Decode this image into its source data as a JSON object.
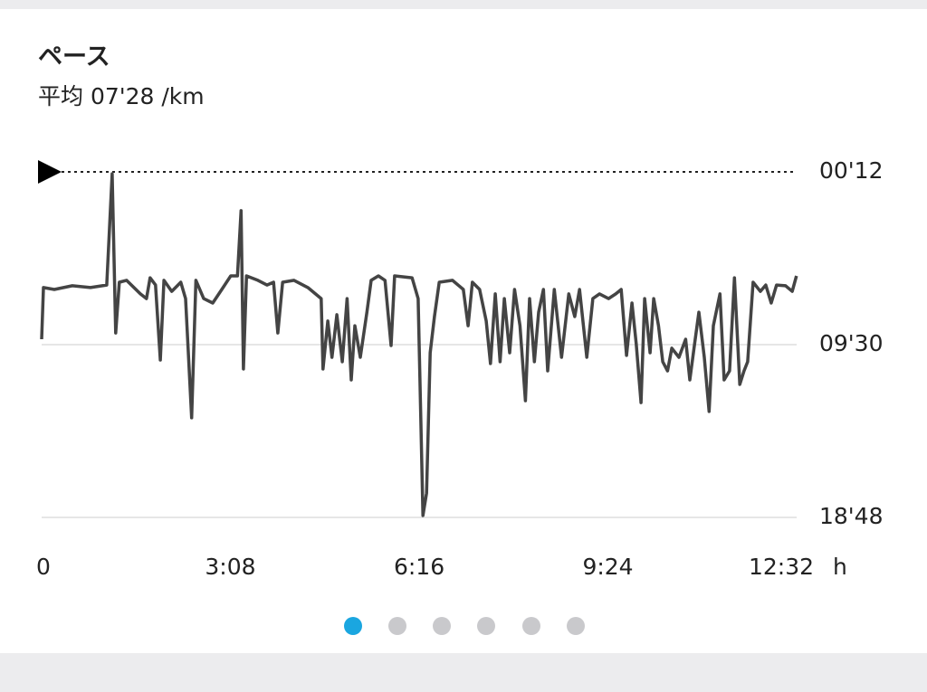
{
  "chart_data": {
    "type": "line",
    "title": "ペース",
    "subtitle": "平均 07'28 /km",
    "x_label": "h",
    "color": "#444444",
    "x": [
      0,
      0.03,
      0.21,
      0.51,
      0.81,
      1.08,
      1.17,
      1.23,
      1.29,
      1.41,
      1.64,
      1.74,
      1.8,
      1.89,
      1.97,
      2.03,
      2.16,
      2.31,
      2.39,
      2.49,
      2.56,
      2.69,
      2.84,
      2.99,
      3.14,
      3.25,
      3.31,
      3.35,
      3.4,
      3.59,
      3.74,
      3.85,
      3.92,
      4.0,
      4.19,
      4.42,
      4.64,
      4.67,
      4.75,
      4.82,
      4.9,
      4.99,
      5.07,
      5.14,
      5.2,
      5.29,
      5.4,
      5.47,
      5.59,
      5.7,
      5.8,
      5.86,
      6.15,
      6.25,
      6.33,
      6.39,
      6.45,
      6.52,
      6.6,
      6.82,
      7.0,
      7.08,
      7.15,
      7.27,
      7.38,
      7.45,
      7.53,
      7.61,
      7.68,
      7.77,
      7.85,
      7.94,
      8.03,
      8.1,
      8.18,
      8.25,
      8.33,
      8.4,
      8.51,
      8.63,
      8.75,
      8.85,
      8.93,
      9.05,
      9.15,
      9.26,
      9.41,
      9.53,
      9.62,
      9.71,
      9.8,
      9.87,
      9.95,
      10.01,
      10.1,
      10.16,
      10.24,
      10.31,
      10.39,
      10.46,
      10.58,
      10.69,
      10.76,
      10.84,
      10.91,
      11.0,
      11.08,
      11.15,
      11.26,
      11.33,
      11.42,
      11.5,
      11.59,
      11.66,
      11.72,
      11.81,
      11.93,
      12.02,
      12.11,
      12.2,
      12.35,
      12.46,
      12.53
    ],
    "values": [
      9.21,
      6.43,
      6.53,
      6.33,
      6.43,
      6.29,
      0.3,
      8.87,
      6.14,
      6.04,
      6.77,
      7.02,
      5.9,
      6.29,
      10.33,
      6.04,
      6.63,
      6.14,
      7.02,
      13.44,
      6.04,
      7.02,
      7.26,
      6.53,
      5.8,
      5.8,
      2.29,
      10.81,
      5.8,
      6.04,
      6.29,
      6.14,
      8.87,
      6.14,
      6.04,
      6.43,
      7.02,
      10.81,
      8.23,
      10.18,
      7.89,
      10.42,
      7.02,
      11.4,
      8.48,
      10.18,
      7.75,
      6.04,
      5.8,
      6.04,
      9.55,
      5.8,
      5.9,
      7.02,
      18.7,
      17.49,
      9.94,
      7.99,
      6.14,
      6.04,
      6.53,
      8.48,
      6.14,
      6.53,
      8.23,
      10.52,
      6.77,
      10.42,
      7.02,
      9.94,
      6.53,
      8.48,
      12.52,
      7.02,
      10.42,
      7.75,
      6.53,
      10.91,
      6.53,
      10.18,
      6.77,
      7.99,
      6.53,
      10.18,
      7.02,
      6.77,
      7.02,
      6.77,
      6.53,
      10.08,
      7.26,
      9.45,
      12.62,
      7.02,
      9.94,
      7.02,
      8.48,
      10.42,
      10.91,
      9.69,
      10.18,
      9.21,
      11.4,
      9.45,
      7.75,
      10.18,
      13.1,
      8.48,
      6.77,
      11.4,
      10.91,
      5.9,
      11.64,
      10.91,
      10.42,
      6.14,
      6.63,
      6.29,
      7.26,
      6.29,
      6.33,
      6.63,
      5.8
    ],
    "xlim": [
      0,
      12.533
    ],
    "xticks": [
      0,
      {
        "value": 3.133,
        "label": "3:08"
      },
      {
        "value": 6.267,
        "label": "6:16"
      },
      {
        "value": 9.4,
        "label": "9:24"
      },
      {
        "value": 12.533,
        "label": "12:32"
      }
    ],
    "ylim": [
      0.2,
      18.8
    ],
    "y_inverted": true,
    "yticks": [
      {
        "value": 0.2,
        "label": "00'12"
      },
      {
        "value": 9.5,
        "label": "09'30"
      },
      {
        "value": 18.8,
        "label": "18'48"
      }
    ],
    "grid": true
  }
}
